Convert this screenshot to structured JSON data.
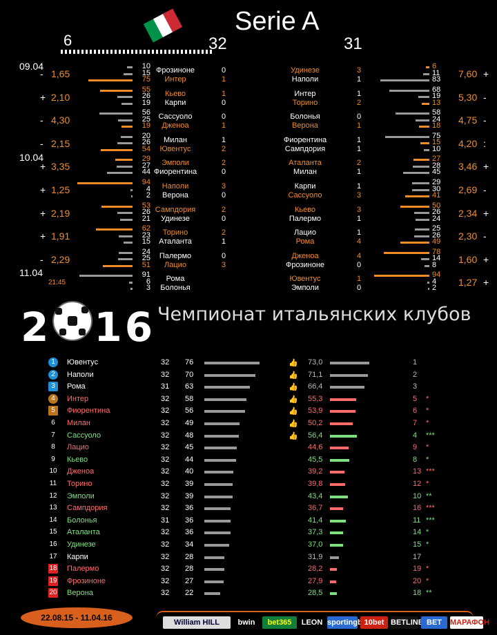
{
  "header": {
    "title": "Serie A",
    "round_left": "6",
    "round_mid": "32",
    "round_right": "31",
    "flag_colors": [
      "#009246",
      "#ffffff",
      "#ce2b37"
    ]
  },
  "colors": {
    "orange": "#f28c28",
    "green": "#7fe07f",
    "red": "#ff6b6b",
    "gray": "#9a9a9a",
    "blue": "#1f8fd6"
  },
  "dates": [
    "09.04",
    "10.04",
    "11.04"
  ],
  "kickoff_time": "21:45",
  "left_matches": [
    {
      "sign": "-",
      "odds": "1,65",
      "pcts": [
        "10",
        "15",
        "75"
      ],
      "home": "Фрозиноне",
      "away": "Интер",
      "hg": "0",
      "ag": "1",
      "winner": "away"
    },
    {
      "sign": "+",
      "odds": "2,10",
      "pcts": [
        "55",
        "26",
        "19"
      ],
      "home": "Кьево",
      "away": "Карпи",
      "hg": "1",
      "ag": "0",
      "winner": "home"
    },
    {
      "sign": "-",
      "odds": "4,30",
      "pcts": [
        "56",
        "25",
        "19"
      ],
      "home": "Сассуоло",
      "away": "Дженоа",
      "hg": "0",
      "ag": "1",
      "winner": "away"
    },
    {
      "sign": "-",
      "odds": "2,15",
      "pcts": [
        "20",
        "26",
        "54"
      ],
      "home": "Милан",
      "away": "Ювентус",
      "hg": "1",
      "ag": "2",
      "winner": "away"
    },
    {
      "sign": "+",
      "odds": "3,35",
      "pcts": [
        "29",
        "27",
        "44"
      ],
      "home": "Эмполи",
      "away": "Фиорентина",
      "hg": "2",
      "ag": "0",
      "winner": "home"
    },
    {
      "sign": "+",
      "odds": "1,25",
      "pcts": [
        "94",
        "4",
        "2"
      ],
      "home": "Наполи",
      "away": "Верона",
      "hg": "3",
      "ag": "0",
      "winner": "home"
    },
    {
      "sign": "+",
      "odds": "2,19",
      "pcts": [
        "53",
        "26",
        "21"
      ],
      "home": "Сампдория",
      "away": "Удинезе",
      "hg": "2",
      "ag": "0",
      "winner": "home"
    },
    {
      "sign": "+",
      "odds": "1,91",
      "pcts": [
        "62",
        "23",
        "15"
      ],
      "home": "Торино",
      "away": "Аталанта",
      "hg": "2",
      "ag": "1",
      "winner": "home"
    },
    {
      "sign": "-",
      "odds": "2,29",
      "pcts": [
        "24",
        "25",
        "51"
      ],
      "home": "Палермо",
      "away": "Лацио",
      "hg": "0",
      "ag": "3",
      "winner": "away"
    },
    {
      "sign": "",
      "odds": "",
      "pcts": [
        "91",
        "6",
        "3"
      ],
      "home": "Рома",
      "away": "Болонья",
      "hg": "",
      "ag": "",
      "winner": "none"
    }
  ],
  "right_matches": [
    {
      "sign": "+",
      "odds": "7,60",
      "pcts": [
        "6",
        "11",
        "83"
      ],
      "home": "Удинезе",
      "away": "Наполи",
      "hg": "3",
      "ag": "1",
      "winner": "home"
    },
    {
      "sign": "-",
      "odds": "5,30",
      "pcts": [
        "68",
        "19",
        "13"
      ],
      "home": "Интер",
      "away": "Торино",
      "hg": "1",
      "ag": "2",
      "winner": "away"
    },
    {
      "sign": "-",
      "odds": "4,75",
      "pcts": [
        "58",
        "24",
        "18"
      ],
      "home": "Болонья",
      "away": "Верона",
      "hg": "0",
      "ag": "1",
      "winner": "away"
    },
    {
      "sign": ":",
      "odds": "4,20",
      "pcts": [
        "75",
        "15",
        "10"
      ],
      "home": "Фиорентина",
      "away": "Сампдория",
      "hg": "1",
      "ag": "1",
      "winner": "draw"
    },
    {
      "sign": "+",
      "odds": "3,46",
      "pcts": [
        "27",
        "28",
        "45"
      ],
      "home": "Аталанта",
      "away": "Милан",
      "hg": "2",
      "ag": "1",
      "winner": "home"
    },
    {
      "sign": "-",
      "odds": "2,69",
      "pcts": [
        "29",
        "30",
        "41"
      ],
      "home": "Карпи",
      "away": "Сассуоло",
      "hg": "1",
      "ag": "3",
      "winner": "away"
    },
    {
      "sign": "+",
      "odds": "2,34",
      "pcts": [
        "50",
        "26",
        "24"
      ],
      "home": "Кьево",
      "away": "Палермо",
      "hg": "3",
      "ag": "1",
      "winner": "home"
    },
    {
      "sign": "-",
      "odds": "2,30",
      "pcts": [
        "25",
        "26",
        "49"
      ],
      "home": "Лацио",
      "away": "Рома",
      "hg": "1",
      "ag": "4",
      "winner": "away"
    },
    {
      "sign": "+",
      "odds": "1,60",
      "pcts": [
        "78",
        "14",
        "8"
      ],
      "home": "Дженоа",
      "away": "Фрозиноне",
      "hg": "4",
      "ag": "0",
      "winner": "home"
    },
    {
      "sign": "+",
      "odds": "1,27",
      "pcts": [
        "94",
        "4",
        "2"
      ],
      "home": "Ювентус",
      "away": "Эмполи",
      "hg": "1",
      "ag": "0",
      "winner": "home"
    }
  ],
  "season_banner": {
    "year": "2016",
    "subtitle": "Чемпионат итальянских  клубов"
  },
  "standings": [
    {
      "pos": "1",
      "team": "Ювентус",
      "games": "32",
      "pts": "76",
      "ppct": "73,0",
      "prev": "1",
      "stars": "",
      "thumb": true,
      "color": "white",
      "badge": "blue",
      "trend": "gray"
    },
    {
      "pos": "2",
      "team": "Наполи",
      "games": "32",
      "pts": "70",
      "ppct": "71,1",
      "prev": "2",
      "stars": "",
      "thumb": true,
      "color": "white",
      "badge": "blue",
      "trend": "gray"
    },
    {
      "pos": "3",
      "team": "Рома",
      "games": "31",
      "pts": "63",
      "ppct": "66,4",
      "prev": "3",
      "stars": "",
      "thumb": true,
      "color": "white",
      "badge": "bluearrow",
      "trend": "gray"
    },
    {
      "pos": "4",
      "team": "Интер",
      "games": "32",
      "pts": "58",
      "ppct": "55,3",
      "prev": "5",
      "stars": "*",
      "thumb": true,
      "color": "red",
      "badge": "brown",
      "trend": "red"
    },
    {
      "pos": "5",
      "team": "Фиорентина",
      "games": "32",
      "pts": "56",
      "ppct": "53,9",
      "prev": "6",
      "stars": "*",
      "thumb": true,
      "color": "red",
      "badge": "brownsq",
      "trend": "red"
    },
    {
      "pos": "6",
      "team": "Милан",
      "games": "32",
      "pts": "49",
      "ppct": "50,2",
      "prev": "7",
      "stars": "*",
      "thumb": true,
      "color": "red",
      "badge": "none",
      "trend": "red"
    },
    {
      "pos": "7",
      "team": "Сассуоло",
      "games": "32",
      "pts": "48",
      "ppct": "56,4",
      "prev": "4",
      "stars": "***",
      "thumb": true,
      "color": "green",
      "badge": "none",
      "trend": "green"
    },
    {
      "pos": "8",
      "team": "Лацио",
      "games": "32",
      "pts": "45",
      "ppct": "44,6",
      "prev": "9",
      "stars": "*",
      "thumb": false,
      "color": "red",
      "badge": "none",
      "trend": "red"
    },
    {
      "pos": "9",
      "team": "Кьево",
      "games": "32",
      "pts": "44",
      "ppct": "45,5",
      "prev": "8",
      "stars": "*",
      "thumb": false,
      "color": "green",
      "badge": "none",
      "trend": "green"
    },
    {
      "pos": "10",
      "team": "Дженоа",
      "games": "32",
      "pts": "40",
      "ppct": "39,2",
      "prev": "13",
      "stars": "***",
      "thumb": false,
      "color": "red",
      "badge": "none",
      "trend": "red"
    },
    {
      "pos": "11",
      "team": "Торино",
      "games": "32",
      "pts": "39",
      "ppct": "39,8",
      "prev": "12",
      "stars": "*",
      "thumb": false,
      "color": "red",
      "badge": "none",
      "trend": "red"
    },
    {
      "pos": "12",
      "team": "Эмполи",
      "games": "32",
      "pts": "39",
      "ppct": "43,4",
      "prev": "10",
      "stars": "**",
      "thumb": false,
      "color": "green",
      "badge": "none",
      "trend": "green"
    },
    {
      "pos": "13",
      "team": "Сампдория",
      "games": "32",
      "pts": "36",
      "ppct": "36,7",
      "prev": "16",
      "stars": "***",
      "thumb": false,
      "color": "red",
      "badge": "none",
      "trend": "red"
    },
    {
      "pos": "14",
      "team": "Болонья",
      "games": "31",
      "pts": "36",
      "ppct": "41,4",
      "prev": "11",
      "stars": "***",
      "thumb": false,
      "color": "green",
      "badge": "none",
      "trend": "green"
    },
    {
      "pos": "15",
      "team": "Аталанта",
      "games": "32",
      "pts": "36",
      "ppct": "37,3",
      "prev": "14",
      "stars": "*",
      "thumb": false,
      "color": "green",
      "badge": "none",
      "trend": "green"
    },
    {
      "pos": "16",
      "team": "Удинезе",
      "games": "32",
      "pts": "34",
      "ppct": "37,0",
      "prev": "15",
      "stars": "*",
      "thumb": false,
      "color": "green",
      "badge": "none",
      "trend": "green"
    },
    {
      "pos": "17",
      "team": "Карпи",
      "games": "32",
      "pts": "28",
      "ppct": "31,9",
      "prev": "17",
      "stars": "",
      "thumb": false,
      "color": "white",
      "badge": "none",
      "trend": "gray"
    },
    {
      "pos": "18",
      "team": "Палермо",
      "games": "32",
      "pts": "28",
      "ppct": "28,2",
      "prev": "19",
      "stars": "*",
      "thumb": false,
      "color": "red",
      "badge": "redsq",
      "trend": "red"
    },
    {
      "pos": "19",
      "team": "Фрозиноне",
      "games": "32",
      "pts": "27",
      "ppct": "27,9",
      "prev": "20",
      "stars": "*",
      "thumb": false,
      "color": "red",
      "badge": "redsq",
      "trend": "red"
    },
    {
      "pos": "20",
      "team": "Верона",
      "games": "32",
      "pts": "22",
      "ppct": "28,5",
      "prev": "18",
      "stars": "**",
      "thumb": false,
      "color": "green",
      "badge": "redarrow",
      "trend": "green"
    }
  ],
  "footer": {
    "period": "22.08.15 - 11.04.16",
    "brands": [
      "William HILL",
      "bwin",
      "bet365",
      "LEON",
      "sportingbet",
      "10bet",
      "BETLINE",
      "BET",
      "МАРАФОН"
    ]
  }
}
